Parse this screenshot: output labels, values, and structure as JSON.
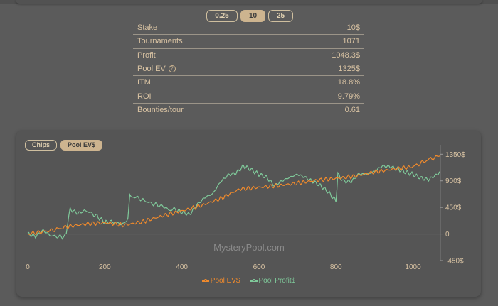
{
  "stake_tabs": [
    {
      "label": "0.25",
      "active": false
    },
    {
      "label": "10",
      "active": true
    },
    {
      "label": "25",
      "active": false
    }
  ],
  "stats": [
    {
      "label": "Stake",
      "value": "10$"
    },
    {
      "label": "Tournaments",
      "value": "1071"
    },
    {
      "label": "Profit",
      "value": "1048.3$"
    },
    {
      "label": "Pool EV",
      "value": "1325$",
      "info_icon": "info-icon"
    },
    {
      "label": "ITM",
      "value": "18.8%"
    },
    {
      "label": "ROI",
      "value": "9.79%"
    },
    {
      "label": "Bounties/tour",
      "value": "0.61"
    }
  ],
  "chart_tabs": [
    {
      "label": "Chips",
      "active": false
    },
    {
      "label": "Pool EV$",
      "active": true
    }
  ],
  "watermark": "MysteryPool.com",
  "colors": {
    "accent": "#cdb48f",
    "pool_ev": "#f08a2c",
    "pool_profit": "#7fc99a"
  },
  "chart_data": {
    "type": "line",
    "xlim": [
      0,
      1071
    ],
    "ylim": [
      -450,
      1450
    ],
    "x_ticks": [
      "0",
      "200",
      "400",
      "600",
      "800",
      "1000"
    ],
    "y_ticks": [
      "1350$",
      "900$",
      "450$",
      "0",
      "-450$"
    ],
    "legend_position": "bottom",
    "grid": "horizontal zero line only",
    "series": [
      {
        "name": "Pool EV$",
        "x": [
          0,
          30,
          60,
          100,
          150,
          200,
          250,
          300,
          350,
          400,
          450,
          500,
          550,
          600,
          650,
          700,
          750,
          800,
          850,
          900,
          950,
          1000,
          1040,
          1071
        ],
        "y": [
          0,
          30,
          60,
          120,
          170,
          190,
          150,
          210,
          310,
          390,
          480,
          600,
          760,
          790,
          820,
          860,
          910,
          940,
          980,
          1050,
          1100,
          1140,
          1260,
          1325
        ]
      },
      {
        "name": "Pool Profit$",
        "x": [
          0,
          20,
          40,
          60,
          90,
          100,
          110,
          130,
          150,
          180,
          200,
          220,
          250,
          260,
          265,
          290,
          320,
          350,
          370,
          380,
          400,
          420,
          440,
          460,
          480,
          500,
          520,
          540,
          560,
          580,
          600,
          620,
          640,
          660,
          680,
          700,
          720,
          740,
          760,
          780,
          800,
          805,
          820,
          840,
          860,
          880,
          900,
          920,
          940,
          960,
          980,
          1000,
          1020,
          1040,
          1060,
          1071
        ],
        "y": [
          0,
          -40,
          60,
          -30,
          -50,
          20,
          420,
          350,
          400,
          300,
          200,
          210,
          160,
          280,
          650,
          600,
          520,
          470,
          400,
          420,
          370,
          330,
          500,
          620,
          680,
          880,
          1000,
          1030,
          1150,
          1090,
          1010,
          960,
          820,
          900,
          960,
          1010,
          960,
          890,
          820,
          710,
          560,
          1010,
          890,
          890,
          1020,
          1010,
          1060,
          1150,
          1140,
          1100,
          1050,
          1010,
          950,
          920,
          1000,
          1048
        ]
      }
    ]
  }
}
